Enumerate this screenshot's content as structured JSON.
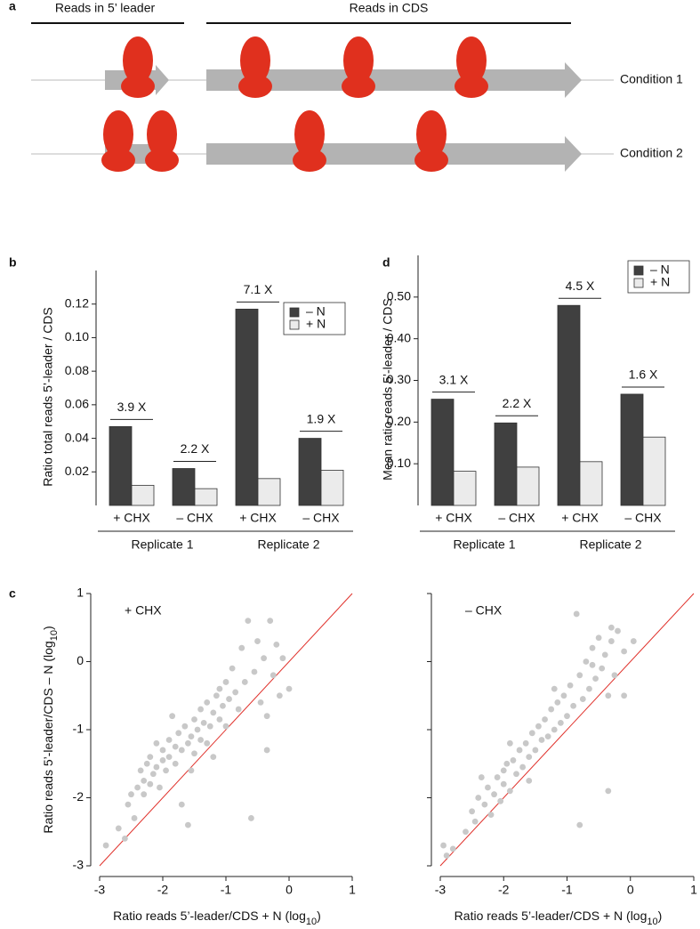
{
  "panel_labels": [
    "a",
    "b",
    "c",
    "d"
  ],
  "diagram": {
    "regions": [
      "Reads in 5’ leader",
      "Reads in CDS"
    ],
    "conditions": [
      "Condition 1",
      "Condition 2"
    ]
  },
  "chart_data": [
    {
      "type": "bar",
      "y_label": "Ratio total reads 5’-leader / CDS",
      "categories": [
        "+ CHX",
        "– CHX",
        "+ CHX",
        "– CHX"
      ],
      "groups": [
        "Replicate 1",
        "Replicate 2"
      ],
      "fold_labels": [
        "3.9 X",
        "2.2 X",
        "7.1 X",
        "1.9 X"
      ],
      "series": [
        {
          "name": "– N",
          "color": "#404040",
          "values": [
            0.047,
            0.022,
            0.117,
            0.04
          ]
        },
        {
          "name": "+ N",
          "color": "#ebebeb",
          "values": [
            0.012,
            0.01,
            0.016,
            0.021
          ]
        }
      ],
      "ylim": [
        0,
        0.14
      ],
      "yticks": [
        0.02,
        0.04,
        0.06,
        0.08,
        {
          "value": 0.1,
          "label": "0.10"
        },
        0.12
      ],
      "legend": "upper right"
    },
    {
      "type": "bar",
      "y_label": "Mean ratio reads 5’-leader / CDS",
      "categories": [
        "+ CHX",
        "– CHX",
        "+ CHX",
        "– CHX"
      ],
      "groups": [
        "Replicate 1",
        "Replicate 2"
      ],
      "fold_labels": [
        "3.1 X",
        "2.2 X",
        "4.5 X",
        "1.6 X"
      ],
      "series": [
        {
          "name": "– N",
          "color": "#404040",
          "values": [
            0.255,
            0.198,
            0.48,
            0.267
          ]
        },
        {
          "name": "+ N",
          "color": "#ebebeb",
          "values": [
            0.082,
            0.092,
            0.105,
            0.164
          ]
        }
      ],
      "ylim": [
        0,
        0.6
      ],
      "yticks": [
        {
          "value": 0.1,
          "label": "0.10"
        },
        {
          "value": 0.2,
          "label": "0.20"
        },
        {
          "value": 0.3,
          "label": "0.30"
        },
        {
          "value": 0.4,
          "label": "0.40"
        },
        {
          "value": 0.5,
          "label": "0.50"
        }
      ],
      "legend": "upper right"
    },
    {
      "type": "scatter",
      "annotation": "+ CHX",
      "x_label": {
        "text": "Ratio reads 5’-leader/CDS + N (log",
        "sub": "10",
        "tail": ")"
      },
      "y_label": {
        "text": "Ratio reads 5’-leader/CDS – N (log",
        "sub": "10",
        "tail": ")"
      },
      "color": "#c8c8c8",
      "identity_line_color": "#e0302a",
      "x": [
        -2.9,
        -2.7,
        -2.6,
        -2.55,
        -2.5,
        -2.45,
        -2.4,
        -2.35,
        -2.3,
        -2.3,
        -2.25,
        -2.2,
        -2.2,
        -2.15,
        -2.1,
        -2.1,
        -2.05,
        -2.0,
        -2.0,
        -1.95,
        -1.9,
        -1.9,
        -1.85,
        -1.8,
        -1.8,
        -1.75,
        -1.7,
        -1.7,
        -1.65,
        -1.6,
        -1.6,
        -1.55,
        -1.5,
        -1.5,
        -1.45,
        -1.4,
        -1.4,
        -1.35,
        -1.3,
        -1.3,
        -1.25,
        -1.2,
        -1.2,
        -1.15,
        -1.1,
        -1.1,
        -1.05,
        -1.0,
        -1.0,
        -0.95,
        -0.9,
        -0.85,
        -0.8,
        -0.75,
        -0.7,
        -0.65,
        -0.6,
        -0.55,
        -0.5,
        -0.45,
        -0.4,
        -0.35,
        -0.3,
        -0.25,
        -0.2,
        -0.15,
        -0.1,
        0.0,
        -0.35,
        -1.55
      ],
      "y": [
        -2.7,
        -2.45,
        -2.6,
        -2.1,
        -1.95,
        -2.3,
        -1.85,
        -1.6,
        -1.95,
        -1.75,
        -1.5,
        -1.8,
        -1.4,
        -1.65,
        -1.2,
        -1.55,
        -1.85,
        -1.45,
        -1.3,
        -1.6,
        -1.15,
        -1.4,
        -0.8,
        -1.25,
        -1.5,
        -1.05,
        -1.3,
        -2.1,
        -0.95,
        -1.2,
        -2.4,
        -1.1,
        -0.85,
        -1.35,
        -1.0,
        -0.7,
        -1.15,
        -0.9,
        -1.2,
        -0.6,
        -0.95,
        -0.75,
        -1.4,
        -0.5,
        -0.85,
        -0.4,
        -0.65,
        -0.3,
        -0.95,
        -0.55,
        -0.1,
        -0.45,
        -0.7,
        0.2,
        -0.3,
        0.6,
        -2.3,
        -0.15,
        0.3,
        -0.6,
        0.05,
        -1.3,
        0.6,
        -0.2,
        0.25,
        -0.5,
        0.05,
        -0.4,
        -0.8,
        -1.6
      ],
      "xlim": [
        -3,
        1
      ],
      "ylim": [
        -3,
        1
      ],
      "xticks": [
        -3,
        -2,
        -1,
        0,
        1
      ],
      "yticks": [
        -3,
        -2,
        -1,
        0,
        1
      ]
    },
    {
      "type": "scatter",
      "annotation": "– CHX",
      "x_label": {
        "text": "Ratio reads 5’-leader/CDS + N (log",
        "sub": "10",
        "tail": ")"
      },
      "color": "#c8c8c8",
      "identity_line_color": "#e0302a",
      "show_ytick_labels": false,
      "x": [
        -2.95,
        -2.9,
        -2.8,
        -2.6,
        -2.5,
        -2.45,
        -2.4,
        -2.3,
        -2.25,
        -2.2,
        -2.15,
        -2.1,
        -2.05,
        -2.0,
        -2.0,
        -1.95,
        -1.9,
        -1.85,
        -1.8,
        -1.75,
        -1.7,
        -1.65,
        -1.6,
        -1.55,
        -1.5,
        -1.45,
        -1.4,
        -1.35,
        -1.3,
        -1.25,
        -1.2,
        -1.15,
        -1.1,
        -1.05,
        -1.0,
        -0.95,
        -0.9,
        -0.85,
        -0.8,
        -0.75,
        -0.7,
        -0.65,
        -0.6,
        -0.55,
        -0.5,
        -0.45,
        -0.4,
        -0.35,
        -0.3,
        -0.25,
        -0.2,
        -0.1,
        0.05,
        -0.1,
        -0.35,
        -0.8,
        -1.6,
        -2.35,
        -1.9,
        -1.2,
        -0.6,
        -0.3
      ],
      "y": [
        -2.7,
        -2.85,
        -2.75,
        -2.5,
        -2.2,
        -2.35,
        -2.0,
        -2.1,
        -1.85,
        -2.25,
        -1.95,
        -1.7,
        -2.05,
        -1.6,
        -1.8,
        -1.5,
        -1.9,
        -1.45,
        -1.65,
        -1.3,
        -1.55,
        -1.2,
        -1.4,
        -1.05,
        -1.3,
        -0.95,
        -1.15,
        -0.85,
        -1.1,
        -0.7,
        -1.0,
        -0.6,
        -0.9,
        -0.5,
        -0.8,
        -0.35,
        -0.65,
        0.7,
        -0.2,
        -0.55,
        0.0,
        -0.4,
        0.2,
        -0.25,
        0.35,
        -0.1,
        0.1,
        -0.5,
        0.3,
        -0.2,
        0.45,
        0.15,
        0.3,
        -0.5,
        -1.9,
        -2.4,
        -1.75,
        -1.7,
        -1.2,
        -0.4,
        -0.05,
        0.5
      ],
      "xlim": [
        -3,
        1
      ],
      "ylim": [
        -3,
        1
      ],
      "xticks": [
        -3,
        -2,
        -1,
        0,
        1
      ],
      "yticks": [
        -3,
        -2,
        -1,
        0,
        1
      ]
    }
  ]
}
